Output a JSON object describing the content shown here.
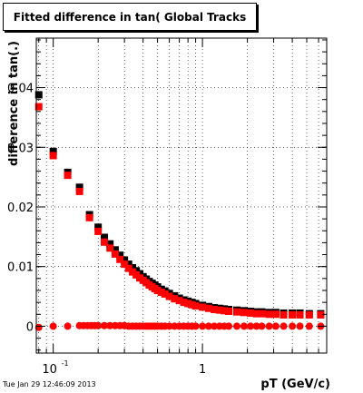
{
  "chart_data": {
    "type": "scatter",
    "title": "Fitted difference in tan( Global Tracks",
    "xlabel": "pT (GeV/c)",
    "ylabel": "difference in tan(.)",
    "x_scale": "log",
    "xlim": [
      0.077,
      6.8
    ],
    "ylim": [
      -0.0045,
      0.0483
    ],
    "grid": true,
    "x_ticks": [
      {
        "value": 0.1,
        "label": "10",
        "sup": "-1"
      },
      {
        "value": 1,
        "label": "1",
        "sup": ""
      }
    ],
    "y_ticks": [
      {
        "value": 0,
        "label": "0"
      },
      {
        "value": 0.01,
        "label": "0.01"
      },
      {
        "value": 0.02,
        "label": "0.02"
      },
      {
        "value": 0.03,
        "label": "0.03"
      },
      {
        "value": 0.04,
        "label": "0.04"
      }
    ],
    "series": [
      {
        "color": "#000000",
        "marker": "square",
        "x": [
          0.08,
          0.1,
          0.125,
          0.15,
          0.175,
          0.2,
          0.22,
          0.24,
          0.26,
          0.28,
          0.3,
          0.32,
          0.34,
          0.36,
          0.38,
          0.4,
          0.42,
          0.44,
          0.46,
          0.48,
          0.5,
          0.53,
          0.56,
          0.6,
          0.65,
          0.7,
          0.75,
          0.8,
          0.85,
          0.9,
          1.0,
          1.1,
          1.2,
          1.3,
          1.4,
          1.5,
          1.7,
          1.9,
          2.1,
          2.3,
          2.5,
          2.8,
          3.1,
          3.5,
          4.0,
          4.5,
          5.2,
          6.2
        ],
        "y": [
          0.0388,
          0.0293,
          0.0258,
          0.0233,
          0.0187,
          0.0166,
          0.0149,
          0.0138,
          0.0128,
          0.0119,
          0.0111,
          0.0104,
          0.0098,
          0.0093,
          0.0088,
          0.0083,
          0.0079,
          0.0075,
          0.0072,
          0.0069,
          0.0066,
          0.0062,
          0.0059,
          0.0055,
          0.0051,
          0.0047,
          0.0044,
          0.0042,
          0.004,
          0.0038,
          0.0035,
          0.0033,
          0.0031,
          0.003,
          0.0029,
          0.0028,
          0.0027,
          0.0026,
          0.0025,
          0.0024,
          0.0024,
          0.0023,
          0.0023,
          0.0022,
          0.0022,
          0.0022,
          0.0021,
          0.0021
        ]
      },
      {
        "color": "#ff0000",
        "marker": "square",
        "x": [
          0.08,
          0.1,
          0.125,
          0.15,
          0.175,
          0.2,
          0.22,
          0.24,
          0.26,
          0.28,
          0.3,
          0.32,
          0.34,
          0.36,
          0.38,
          0.4,
          0.42,
          0.44,
          0.46,
          0.48,
          0.5,
          0.53,
          0.56,
          0.6,
          0.65,
          0.7,
          0.75,
          0.8,
          0.85,
          0.9,
          1.0,
          1.1,
          1.2,
          1.3,
          1.4,
          1.5,
          1.7,
          1.9,
          2.1,
          2.3,
          2.5,
          2.8,
          3.1,
          3.5,
          4.0,
          4.5,
          5.2,
          6.2
        ],
        "y": [
          0.0368,
          0.0286,
          0.0253,
          0.0226,
          0.0182,
          0.0159,
          0.0141,
          0.0131,
          0.0121,
          0.0112,
          0.0104,
          0.0097,
          0.0091,
          0.0086,
          0.0081,
          0.0077,
          0.0073,
          0.0069,
          0.0066,
          0.0063,
          0.006,
          0.0057,
          0.0054,
          0.005,
          0.0046,
          0.0043,
          0.004,
          0.0038,
          0.0036,
          0.0034,
          0.0032,
          0.003,
          0.0028,
          0.0027,
          0.0026,
          0.0025,
          0.0024,
          0.0023,
          0.0022,
          0.0021,
          0.0021,
          0.002,
          0.002,
          0.0019,
          0.0019,
          0.0019,
          0.0019,
          0.0019
        ]
      },
      {
        "color": "#ff0000",
        "marker": "circle",
        "x": [
          0.08,
          0.1,
          0.125,
          0.15,
          0.16,
          0.17,
          0.18,
          0.19,
          0.2,
          0.22,
          0.24,
          0.26,
          0.28,
          0.3,
          0.32,
          0.34,
          0.36,
          0.38,
          0.4,
          0.42,
          0.44,
          0.46,
          0.48,
          0.5,
          0.53,
          0.56,
          0.6,
          0.65,
          0.7,
          0.75,
          0.8,
          0.85,
          0.9,
          1.0,
          1.1,
          1.2,
          1.3,
          1.4,
          1.5,
          1.7,
          1.9,
          2.1,
          2.3,
          2.5,
          2.8,
          3.1,
          3.5,
          4.0,
          4.5,
          5.2,
          6.2
        ],
        "y": [
          -0.0002,
          0.0,
          0.0,
          0.0001,
          0.0001,
          0.0001,
          0.0001,
          0.0001,
          0.0001,
          0.0001,
          0.0001,
          0.0001,
          0.0001,
          0.0001,
          0.0,
          0.0,
          0.0,
          0.0,
          0.0,
          0.0,
          0.0,
          0.0,
          0.0,
          0.0,
          0.0,
          0.0,
          0.0,
          0.0,
          0.0,
          0.0,
          0.0,
          0.0,
          0.0,
          0.0,
          0.0,
          0.0,
          0.0,
          0.0,
          0.0,
          0.0,
          0.0,
          0.0,
          0.0,
          0.0,
          0.0,
          0.0,
          0.0,
          0.0,
          0.0,
          0.0,
          0.0
        ]
      }
    ]
  },
  "datestamp": "Tue Jan 29 12:46:09 2013"
}
